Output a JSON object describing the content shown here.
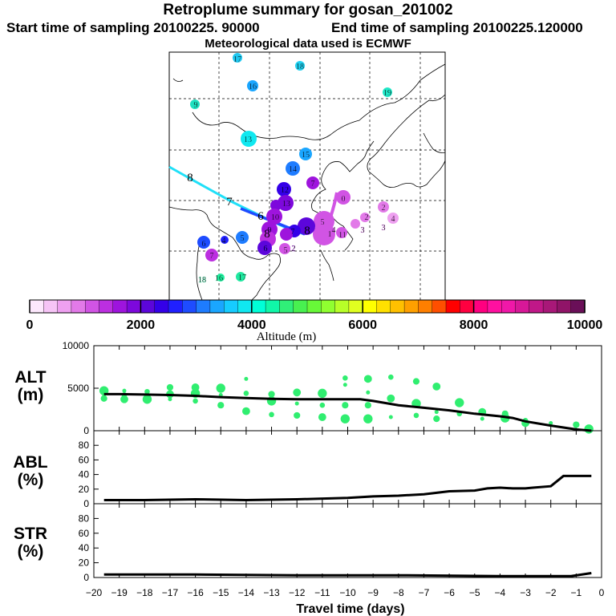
{
  "header": {
    "title": "Retroplume summary for gosan_201002",
    "start_label": "Start time of sampling 20100225. 90000",
    "end_label": "End time of sampling 20100225.120000",
    "met_label": "Meteorological data used is ECMWF"
  },
  "colorbar": {
    "tick_labels": [
      "0",
      "2000",
      "4000",
      "6000",
      "8000",
      "10000"
    ],
    "tick_values": [
      0,
      2000,
      4000,
      6000,
      8000,
      10000
    ],
    "title": "Altitude (m)",
    "colors": [
      "#fde8fd",
      "#f6c4f6",
      "#eea0f0",
      "#e27ae8",
      "#d154e4",
      "#bc2fe0",
      "#9e14dd",
      "#7d08dc",
      "#5c06db",
      "#3400e8",
      "#2020ff",
      "#1e4cff",
      "#1e7cff",
      "#1aa6ff",
      "#16ccff",
      "#10e8f0",
      "#00ffd8",
      "#10f7a8",
      "#30ef78",
      "#48f050",
      "#68f838",
      "#90ff30",
      "#b8ff28",
      "#e0ff20",
      "#ffff00",
      "#ffe000",
      "#ffc000",
      "#ffa000",
      "#ff7f00",
      "#ff4f00",
      "#ff0000",
      "#ff0040",
      "#ff0080",
      "#ff10a0",
      "#f018a8",
      "#d81898",
      "#c01888",
      "#a81878",
      "#901468",
      "#6a0f58"
    ]
  },
  "map": {
    "trajectory_labels": [
      {
        "text": "17",
        "color": "#20c8f0"
      },
      {
        "text": "18",
        "color": "#20d0f0"
      },
      {
        "text": "16",
        "color": "#1aa6ff"
      },
      {
        "text": "19",
        "color": "#20e8c8"
      },
      {
        "text": "9",
        "color": "#20e0c0"
      },
      {
        "text": "13",
        "color": "#10e8f0"
      },
      {
        "text": "15",
        "color": "#1aa6ff"
      },
      {
        "text": "14",
        "color": "#1e7cff"
      },
      {
        "text": "8",
        "color": "#000000"
      },
      {
        "text": "7",
        "color": "#000000"
      },
      {
        "text": "7",
        "color": "#9e14dd"
      },
      {
        "text": "0",
        "color": "#d154e4"
      },
      {
        "text": "12",
        "color": "#3400e8"
      },
      {
        "text": "13",
        "color": "#7d08dc"
      },
      {
        "text": "6",
        "color": "#000000"
      },
      {
        "text": "10",
        "color": "#9e14dd"
      },
      {
        "text": "5",
        "color": "#d154e4"
      },
      {
        "text": "4",
        "color": "#d154e4"
      },
      {
        "text": "3",
        "color": "#d154e4"
      },
      {
        "text": "2",
        "color": "#d154e4"
      },
      {
        "text": "8",
        "color": "#000000"
      },
      {
        "text": "9",
        "color": "#7d08dc"
      },
      {
        "text": "7",
        "color": "#3400e8"
      },
      {
        "text": "1",
        "color": "#d154e4"
      },
      {
        "text": "11",
        "color": "#d154e4"
      },
      {
        "text": "3",
        "color": "#d154e4"
      },
      {
        "text": "2",
        "color": "#e27ae8"
      },
      {
        "text": "4",
        "color": "#e27ae8"
      },
      {
        "text": "6",
        "color": "#1e4cff"
      },
      {
        "text": "4",
        "color": "#2020ff"
      },
      {
        "text": "5",
        "color": "#1e7cff"
      },
      {
        "text": "6",
        "color": "#3400e8"
      },
      {
        "text": "5",
        "color": "#d154e4"
      },
      {
        "text": "2",
        "color": "#9e14dd"
      },
      {
        "text": "7",
        "color": "#bc2fe0"
      },
      {
        "text": "18",
        "color": "#20f0a0"
      },
      {
        "text": "16",
        "color": "#20f0a0"
      },
      {
        "text": "17",
        "color": "#20e8a0"
      },
      {
        "text": "8",
        "color": "#000000"
      }
    ]
  },
  "chart_data": [
    {
      "type": "scatter",
      "panel_label": "ALT",
      "unit_label": "(m)",
      "ylim": [
        0,
        10000
      ],
      "yticks": [
        "0",
        "5000",
        "10000"
      ],
      "xlim": [
        -20,
        0
      ],
      "median_line": {
        "x": [
          -19.6,
          -19,
          -18,
          -17,
          -16,
          -15,
          -14,
          -13,
          -12,
          -11,
          -10,
          -9.5,
          -9,
          -8,
          -7,
          -6,
          -5,
          -4,
          -3.5,
          -3,
          -2,
          -1,
          -0.4
        ],
        "y": [
          4300,
          4300,
          4250,
          4200,
          4100,
          3950,
          3850,
          3750,
          3700,
          3700,
          3700,
          3700,
          3500,
          3000,
          2700,
          2400,
          2000,
          1700,
          1500,
          1100,
          600,
          150,
          0
        ]
      },
      "cluster_points": [
        {
          "x": -19.6,
          "y": 4300
        },
        {
          "x": -19.6,
          "y": 3800
        },
        {
          "x": -19.6,
          "y": 4700
        },
        {
          "x": -18.8,
          "y": 4200
        },
        {
          "x": -18.8,
          "y": 3700
        },
        {
          "x": -18.8,
          "y": 4700
        },
        {
          "x": -17.9,
          "y": 4100
        },
        {
          "x": -17.9,
          "y": 3700
        },
        {
          "x": -17.9,
          "y": 4600
        },
        {
          "x": -17.0,
          "y": 4300
        },
        {
          "x": -17.0,
          "y": 3700
        },
        {
          "x": -17.0,
          "y": 5100
        },
        {
          "x": -16.0,
          "y": 4400
        },
        {
          "x": -16.0,
          "y": 3500
        },
        {
          "x": -16.0,
          "y": 5100
        },
        {
          "x": -15.0,
          "y": 4200
        },
        {
          "x": -15.0,
          "y": 3000
        },
        {
          "x": -15.0,
          "y": 5000
        },
        {
          "x": -14.0,
          "y": 4400
        },
        {
          "x": -14.0,
          "y": 2300
        },
        {
          "x": -14.0,
          "y": 6100
        },
        {
          "x": -13.0,
          "y": 4300
        },
        {
          "x": -13.0,
          "y": 3500
        },
        {
          "x": -13.0,
          "y": 1900
        },
        {
          "x": -12.0,
          "y": 4500
        },
        {
          "x": -12.0,
          "y": 3200
        },
        {
          "x": -12.0,
          "y": 1800
        },
        {
          "x": -11.0,
          "y": 4400
        },
        {
          "x": -11.0,
          "y": 3000
        },
        {
          "x": -11.0,
          "y": 1600
        },
        {
          "x": -10.1,
          "y": 5400
        },
        {
          "x": -10.1,
          "y": 3000
        },
        {
          "x": -10.1,
          "y": 1400
        },
        {
          "x": -10.1,
          "y": 6200
        },
        {
          "x": -9.2,
          "y": 6100
        },
        {
          "x": -9.2,
          "y": 4500
        },
        {
          "x": -9.2,
          "y": 3000
        },
        {
          "x": -9.2,
          "y": 1400
        },
        {
          "x": -8.3,
          "y": 6300
        },
        {
          "x": -8.3,
          "y": 3800
        },
        {
          "x": -8.3,
          "y": 1600
        },
        {
          "x": -7.3,
          "y": 5800
        },
        {
          "x": -7.3,
          "y": 3200
        },
        {
          "x": -7.3,
          "y": 1800
        },
        {
          "x": -6.5,
          "y": 5200
        },
        {
          "x": -6.5,
          "y": 2200
        },
        {
          "x": -6.5,
          "y": 1400
        },
        {
          "x": -5.6,
          "y": 3300
        },
        {
          "x": -5.6,
          "y": 2000
        },
        {
          "x": -4.7,
          "y": 2200
        },
        {
          "x": -4.7,
          "y": 1400
        },
        {
          "x": -3.8,
          "y": 2000
        },
        {
          "x": -3.8,
          "y": 1500
        },
        {
          "x": -3.0,
          "y": 1200
        },
        {
          "x": -3.0,
          "y": 900
        },
        {
          "x": -2.0,
          "y": 900
        },
        {
          "x": -1.0,
          "y": 700
        },
        {
          "x": -0.5,
          "y": 200
        }
      ]
    },
    {
      "type": "line",
      "panel_label": "ABL",
      "unit_label": "(%)",
      "ylim": [
        0,
        100
      ],
      "yticks": [
        "0",
        "20",
        "40",
        "60",
        "80"
      ],
      "xlim": [
        -20,
        0
      ],
      "x": [
        -19.6,
        -18,
        -16,
        -14,
        -12,
        -10,
        -9,
        -8,
        -7,
        -6,
        -5,
        -4.5,
        -4,
        -3.5,
        -3,
        -2.7,
        -2,
        -1.5,
        -1,
        -0.4
      ],
      "y": [
        5,
        5,
        6,
        5,
        6,
        8,
        10,
        11,
        13,
        17,
        18,
        21,
        22,
        21,
        21,
        22,
        24,
        38,
        38,
        38
      ]
    },
    {
      "type": "line",
      "panel_label": "STR",
      "unit_label": "(%)",
      "ylim": [
        0,
        100
      ],
      "yticks": [
        "0",
        "20",
        "40",
        "60",
        "80"
      ],
      "xlim": [
        -20,
        0
      ],
      "xticks": [
        "−20",
        "−19",
        "−18",
        "−17",
        "−16",
        "−15",
        "−14",
        "−13",
        "−12",
        "−11",
        "−10",
        "−9",
        "−8",
        "−7",
        "−6",
        "−5",
        "−4",
        "−3",
        "−2",
        "−1",
        "0"
      ],
      "xlabel": "Travel time (days)",
      "x": [
        -19.6,
        -16,
        -12,
        -8,
        -4,
        -2,
        -1.2,
        -0.4
      ],
      "y": [
        4,
        4,
        3,
        3,
        2,
        2,
        2,
        6
      ]
    }
  ]
}
